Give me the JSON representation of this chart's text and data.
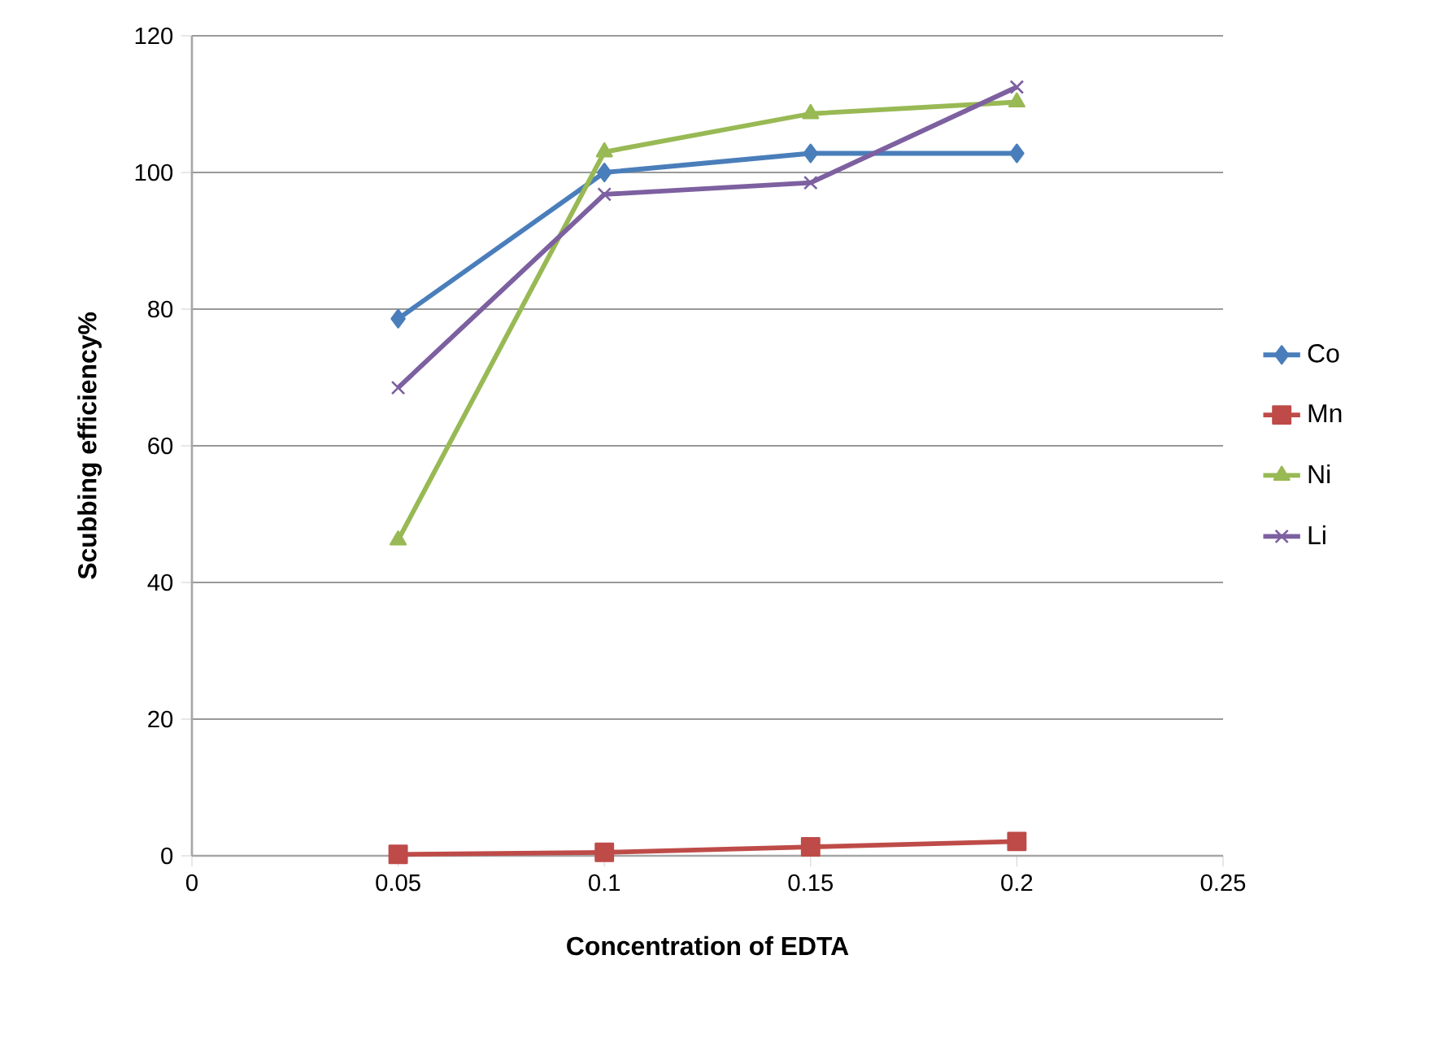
{
  "chart_data": {
    "type": "line",
    "xlabel": "Concentration of EDTA",
    "ylabel": "Scubbing efficiency%",
    "x": [
      0.05,
      0.1,
      0.15,
      0.2
    ],
    "series": [
      {
        "name": "Co",
        "color": "#4a7ebb",
        "marker": "diamond",
        "values": [
          78.6,
          100,
          102.8,
          102.8
        ]
      },
      {
        "name": "Mn",
        "color": "#be4b48",
        "marker": "square",
        "values": [
          0.2,
          0.5,
          1.3,
          2.1
        ]
      },
      {
        "name": "Ni",
        "color": "#98b954",
        "marker": "triangle",
        "values": [
          46.2,
          103,
          108.6,
          110.3
        ]
      },
      {
        "name": "Li",
        "color": "#7d60a0",
        "marker": "cross",
        "values": [
          68.5,
          96.8,
          98.5,
          112.5
        ]
      }
    ],
    "xlim": [
      0,
      0.25
    ],
    "xticks": [
      0,
      0.05,
      0.1,
      0.15,
      0.2,
      0.25
    ],
    "ylim": [
      0,
      120
    ],
    "yticks": [
      0,
      20,
      40,
      60,
      80,
      100,
      120
    ],
    "grid": "y",
    "legend": "right",
    "line_style": "solid"
  }
}
